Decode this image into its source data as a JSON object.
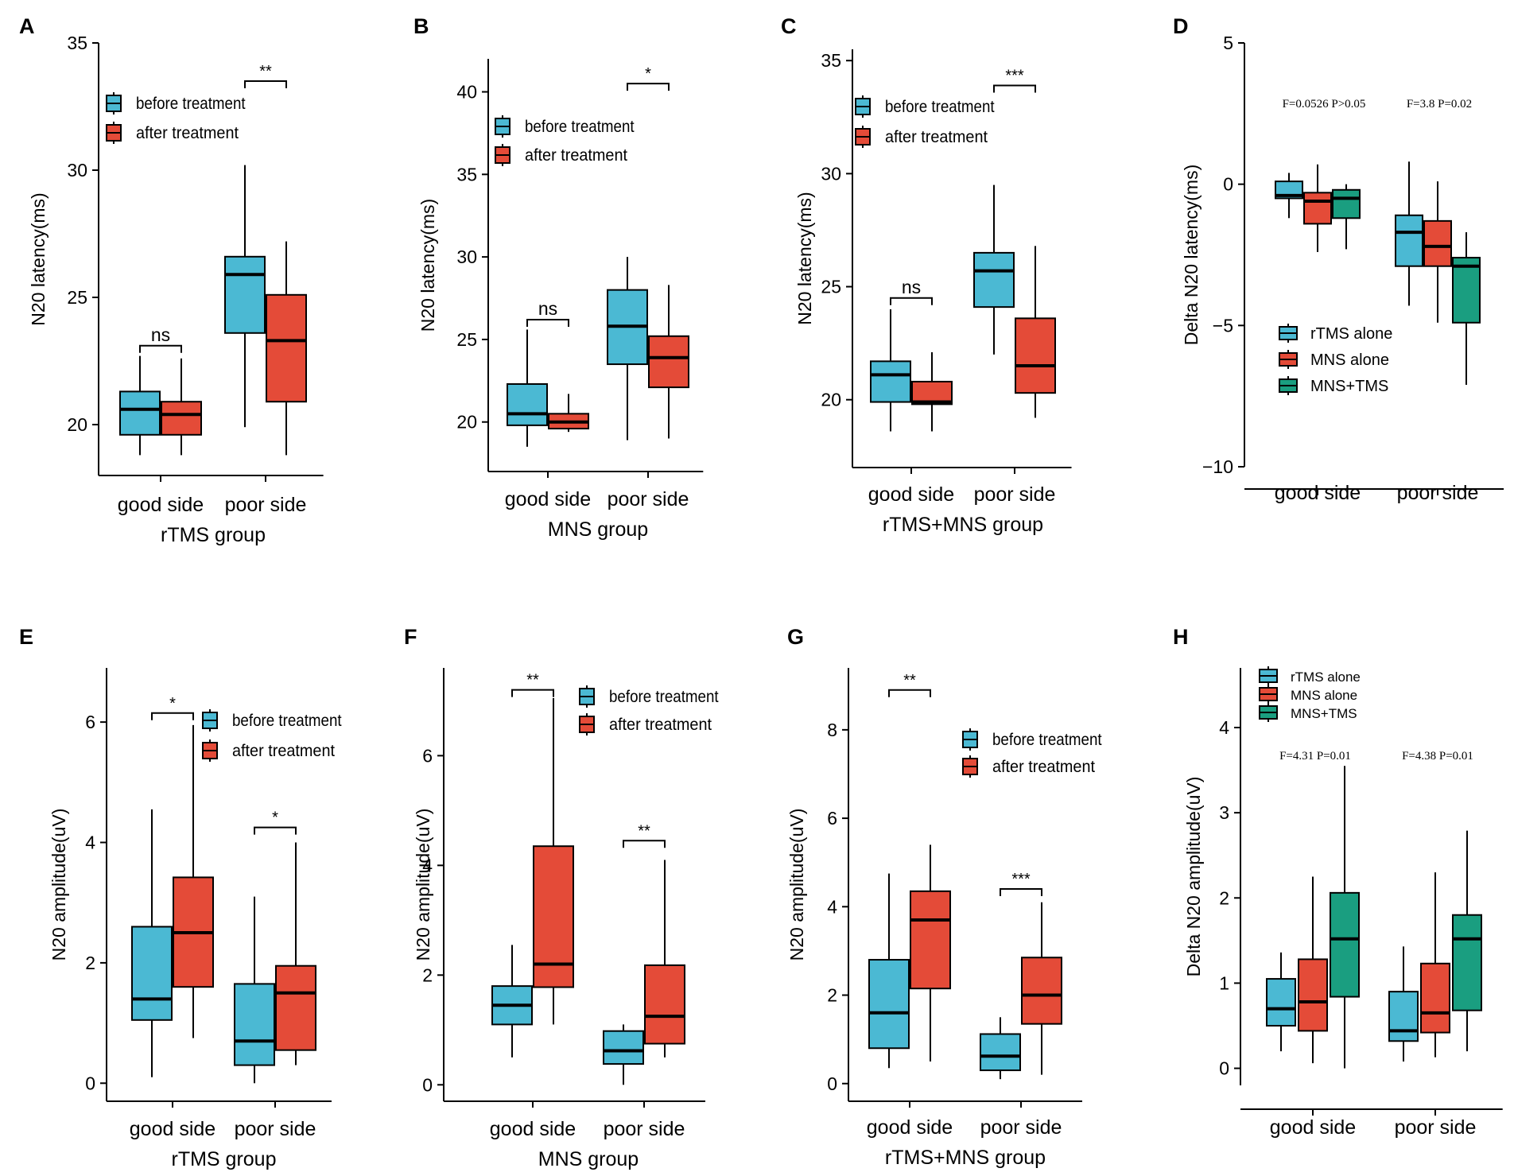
{
  "colors": {
    "before": "#4BB9D3",
    "after": "#E44B38",
    "combo": "#1A9E80",
    "axis": "#000000"
  },
  "chart_data": [
    {
      "id": "A",
      "type": "box",
      "title": "",
      "ylabel": "N20 latency(ms)",
      "xlabel": "rTMS group",
      "ylim": [
        18,
        35
      ],
      "yticks": [
        20,
        25,
        30,
        35
      ],
      "categories": [
        "good side",
        "poor side"
      ],
      "series": [
        {
          "name": "before treatment",
          "color_key": "before",
          "boxes": [
            {
              "min": 18.8,
              "q1": 19.6,
              "median": 20.6,
              "q3": 21.3,
              "max": 22.7
            },
            {
              "min": 19.9,
              "q1": 23.6,
              "median": 25.9,
              "q3": 26.6,
              "max": 30.2
            }
          ]
        },
        {
          "name": "after treatment",
          "color_key": "after",
          "boxes": [
            {
              "min": 18.8,
              "q1": 19.6,
              "median": 20.4,
              "q3": 20.9,
              "max": 22.6
            },
            {
              "min": 18.8,
              "q1": 20.9,
              "median": 23.3,
              "q3": 25.1,
              "max": 27.2
            }
          ]
        }
      ],
      "significance": [
        {
          "category": 0,
          "label": "ns",
          "y": 23.1
        },
        {
          "category": 1,
          "label": "**",
          "y": 33.5
        }
      ],
      "legend": [
        "before treatment",
        "after treatment"
      ],
      "legend_position": "top-left"
    },
    {
      "id": "B",
      "type": "box",
      "title": "",
      "ylabel": "N20 latency(ms)",
      "xlabel": "MNS group",
      "ylim": [
        17,
        42
      ],
      "yticks": [
        20,
        25,
        30,
        35,
        40
      ],
      "categories": [
        "good side",
        "poor side"
      ],
      "series": [
        {
          "name": "before treatment",
          "color_key": "before",
          "boxes": [
            {
              "min": 18.5,
              "q1": 19.8,
              "median": 20.5,
              "q3": 22.3,
              "max": 25.6
            },
            {
              "min": 18.9,
              "q1": 23.5,
              "median": 25.8,
              "q3": 28.0,
              "max": 30.0
            }
          ]
        },
        {
          "name": "after treatment",
          "color_key": "after",
          "boxes": [
            {
              "min": 19.4,
              "q1": 19.6,
              "median": 20.0,
              "q3": 20.5,
              "max": 21.7
            },
            {
              "min": 19.0,
              "q1": 22.1,
              "median": 23.9,
              "q3": 25.2,
              "max": 28.3
            }
          ]
        }
      ],
      "significance": [
        {
          "category": 0,
          "label": "ns",
          "y": 26.2
        },
        {
          "category": 1,
          "label": "*",
          "y": 40.5
        }
      ],
      "legend": [
        "before treatment",
        "after treatment"
      ],
      "legend_position": "top-left"
    },
    {
      "id": "C",
      "type": "box",
      "title": "",
      "ylabel": "N20 latency(ms)",
      "xlabel": "rTMS+MNS group",
      "ylim": [
        17,
        35.5
      ],
      "yticks": [
        20,
        25,
        30,
        35
      ],
      "categories": [
        "good side",
        "poor side"
      ],
      "series": [
        {
          "name": "before treatment",
          "color_key": "before",
          "boxes": [
            {
              "min": 18.6,
              "q1": 19.9,
              "median": 21.1,
              "q3": 21.7,
              "max": 24.0
            },
            {
              "min": 22.0,
              "q1": 24.1,
              "median": 25.7,
              "q3": 26.5,
              "max": 29.5
            }
          ]
        },
        {
          "name": "after treatment",
          "color_key": "after",
          "boxes": [
            {
              "min": 18.6,
              "q1": 19.8,
              "median": 19.9,
              "q3": 20.8,
              "max": 22.1
            },
            {
              "min": 19.2,
              "q1": 20.3,
              "median": 21.5,
              "q3": 23.6,
              "max": 26.8
            }
          ]
        }
      ],
      "significance": [
        {
          "category": 0,
          "label": "ns",
          "y": 24.5
        },
        {
          "category": 1,
          "label": "***",
          "y": 33.9
        }
      ],
      "legend": [
        "before treatment",
        "after treatment"
      ],
      "legend_position": "top-left"
    },
    {
      "id": "D",
      "type": "box",
      "title": "",
      "ylabel": "Delta N20 latency(ms)",
      "xlabel": "",
      "ylim": [
        -10,
        5
      ],
      "yticks": [
        -10,
        -5,
        0,
        5
      ],
      "ytick_labels": [
        "−10",
        "−5",
        "0",
        "5"
      ],
      "categories": [
        "good side",
        "poor side"
      ],
      "series": [
        {
          "name": "rTMS alone",
          "color_key": "before",
          "boxes": [
            {
              "min": -1.2,
              "q1": -0.5,
              "median": -0.4,
              "q3": 0.1,
              "max": 0.4
            },
            {
              "min": -4.3,
              "q1": -2.9,
              "median": -1.7,
              "q3": -1.1,
              "max": 0.8
            }
          ]
        },
        {
          "name": "MNS alone",
          "color_key": "after",
          "boxes": [
            {
              "min": -2.4,
              "q1": -1.4,
              "median": -0.6,
              "q3": -0.3,
              "max": 0.7
            },
            {
              "min": -4.9,
              "q1": -2.9,
              "median": -2.2,
              "q3": -1.3,
              "max": 0.1
            }
          ]
        },
        {
          "name": "MNS+TMS",
          "color_key": "combo",
          "boxes": [
            {
              "min": -2.3,
              "q1": -1.2,
              "median": -0.5,
              "q3": -0.2,
              "max": 0.0
            },
            {
              "min": -7.1,
              "q1": -4.9,
              "median": -2.9,
              "q3": -2.6,
              "max": -1.7
            }
          ]
        }
      ],
      "annotations": [
        "F=0.0526  P>0.05",
        "F=3.8  P=0.02"
      ],
      "legend": [
        "rTMS alone",
        "MNS alone",
        "MNS+TMS"
      ],
      "legend_position": "lower-left"
    },
    {
      "id": "E",
      "type": "box",
      "title": "",
      "ylabel": "N20 amplitude(uV)",
      "xlabel": "rTMS group",
      "ylim": [
        -0.3,
        6.9
      ],
      "yticks": [
        0,
        2,
        4,
        6
      ],
      "categories": [
        "good side",
        "poor side"
      ],
      "series": [
        {
          "name": "before treatment",
          "color_key": "before",
          "boxes": [
            {
              "min": 0.1,
              "q1": 1.05,
              "median": 1.4,
              "q3": 2.6,
              "max": 4.55
            },
            {
              "min": 0.0,
              "q1": 0.3,
              "median": 0.7,
              "q3": 1.65,
              "max": 3.1
            }
          ]
        },
        {
          "name": "after treatment",
          "color_key": "after",
          "boxes": [
            {
              "min": 0.75,
              "q1": 1.6,
              "median": 2.5,
              "q3": 3.42,
              "max": 5.95
            },
            {
              "min": 0.3,
              "q1": 0.55,
              "median": 1.5,
              "q3": 1.95,
              "max": 4.0
            }
          ]
        }
      ],
      "significance": [
        {
          "category": 0,
          "label": "*",
          "y": 6.15
        },
        {
          "category": 1,
          "label": "*",
          "y": 4.25
        }
      ],
      "legend": [
        "before treatment",
        "after treatment"
      ],
      "legend_position": "top-right"
    },
    {
      "id": "F",
      "type": "box",
      "title": "",
      "ylabel": "N20 amplitude(uV)",
      "xlabel": "MNS group",
      "ylim": [
        -0.3,
        7.6
      ],
      "yticks": [
        0,
        2,
        4,
        6
      ],
      "categories": [
        "good side",
        "poor side"
      ],
      "series": [
        {
          "name": "before treatment",
          "color_key": "before",
          "boxes": [
            {
              "min": 0.5,
              "q1": 1.1,
              "median": 1.45,
              "q3": 1.8,
              "max": 2.55
            },
            {
              "min": 0.0,
              "q1": 0.38,
              "median": 0.62,
              "q3": 0.98,
              "max": 1.1
            }
          ]
        },
        {
          "name": "after treatment",
          "color_key": "after",
          "boxes": [
            {
              "min": 1.1,
              "q1": 1.78,
              "median": 2.2,
              "q3": 4.35,
              "max": 7.05
            },
            {
              "min": 0.5,
              "q1": 0.75,
              "median": 1.25,
              "q3": 2.18,
              "max": 4.1
            }
          ]
        }
      ],
      "significance": [
        {
          "category": 0,
          "label": "**",
          "y": 7.2
        },
        {
          "category": 1,
          "label": "**",
          "y": 4.45
        }
      ],
      "legend": [
        "before treatment",
        "after treatment"
      ],
      "legend_position": "top-right"
    },
    {
      "id": "G",
      "type": "box",
      "title": "",
      "ylabel": "N20 amplitude(uV)",
      "xlabel": "rTMS+MNS group",
      "ylim": [
        -0.4,
        9.4
      ],
      "yticks": [
        0,
        2,
        4,
        6,
        8
      ],
      "categories": [
        "good side",
        "poor side"
      ],
      "series": [
        {
          "name": "before treatment",
          "color_key": "before",
          "boxes": [
            {
              "min": 0.35,
              "q1": 0.8,
              "median": 1.6,
              "q3": 2.8,
              "max": 4.75
            },
            {
              "min": 0.1,
              "q1": 0.3,
              "median": 0.62,
              "q3": 1.12,
              "max": 1.5
            }
          ]
        },
        {
          "name": "after treatment",
          "color_key": "after",
          "boxes": [
            {
              "min": 0.5,
              "q1": 2.15,
              "median": 3.7,
              "q3": 4.35,
              "max": 5.4
            },
            {
              "min": 0.2,
              "q1": 1.35,
              "median": 2.0,
              "q3": 2.85,
              "max": 4.1
            }
          ]
        }
      ],
      "significance": [
        {
          "category": 0,
          "label": "**",
          "y": 8.9
        },
        {
          "category": 1,
          "label": "***",
          "y": 4.4
        }
      ],
      "legend": [
        "before treatment",
        "after treatment"
      ],
      "legend_position": "top-right"
    },
    {
      "id": "H",
      "type": "box",
      "title": "",
      "ylabel": "Delta N20 amplitude(uV)",
      "xlabel": "",
      "ylim": [
        -0.2,
        4.7
      ],
      "yticks": [
        0,
        1,
        2,
        3,
        4
      ],
      "categories": [
        "good side",
        "poor side"
      ],
      "series": [
        {
          "name": "rTMS alone",
          "color_key": "before",
          "boxes": [
            {
              "min": 0.2,
              "q1": 0.5,
              "median": 0.7,
              "q3": 1.05,
              "max": 1.36
            },
            {
              "min": 0.08,
              "q1": 0.32,
              "median": 0.44,
              "q3": 0.9,
              "max": 1.43
            }
          ]
        },
        {
          "name": "MNS alone",
          "color_key": "after",
          "boxes": [
            {
              "min": 0.06,
              "q1": 0.44,
              "median": 0.78,
              "q3": 1.28,
              "max": 2.25
            },
            {
              "min": 0.13,
              "q1": 0.42,
              "median": 0.65,
              "q3": 1.23,
              "max": 2.3
            }
          ]
        },
        {
          "name": "MNS+TMS",
          "color_key": "combo",
          "boxes": [
            {
              "min": 0.0,
              "q1": 0.84,
              "median": 1.52,
              "q3": 2.06,
              "max": 3.55
            },
            {
              "min": 0.2,
              "q1": 0.68,
              "median": 1.52,
              "q3": 1.8,
              "max": 2.79
            }
          ]
        }
      ],
      "annotations": [
        "F=4.31 P=0.01",
        "F=4.38  P=0.01"
      ],
      "legend": [
        "rTMS alone",
        "MNS alone",
        "MNS+TMS"
      ],
      "legend_position": "top-left"
    }
  ]
}
